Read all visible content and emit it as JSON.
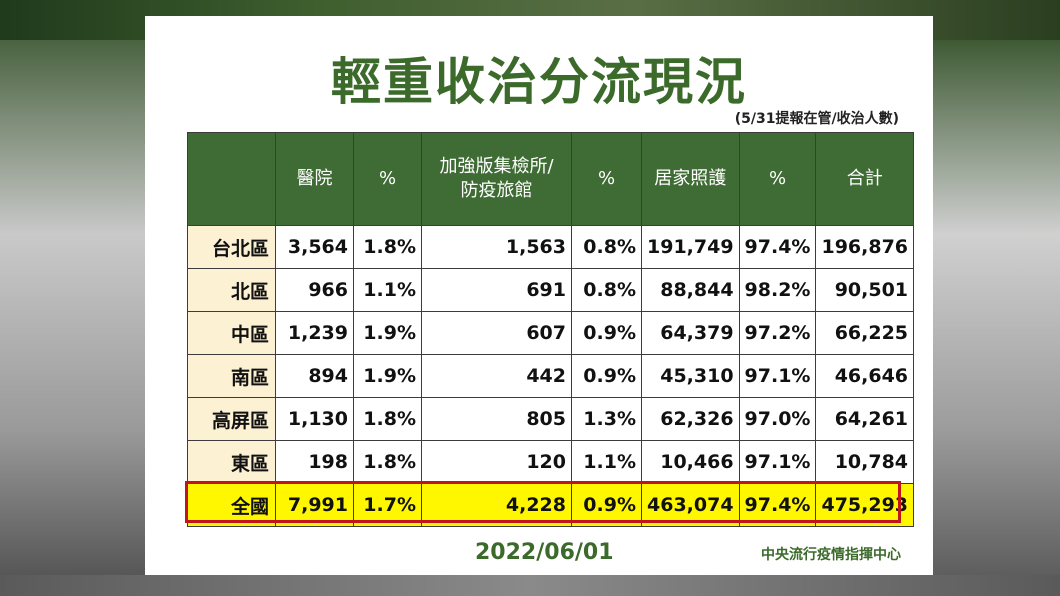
{
  "title": "輕重收治分流現況",
  "subtitle": "(5/31提報在管/收治人數)",
  "headers": [
    "",
    "醫院",
    "%",
    "加強版集檢所/\n防疫旅館",
    "%",
    "居家照護",
    "%",
    "合計"
  ],
  "rows": [
    [
      "台北區",
      "3,564",
      "1.8%",
      "1,563",
      "0.8%",
      "191,749",
      "97.4%",
      "196,876"
    ],
    [
      "北區",
      "966",
      "1.1%",
      "691",
      "0.8%",
      "88,844",
      "98.2%",
      "90,501"
    ],
    [
      "中區",
      "1,239",
      "1.9%",
      "607",
      "0.9%",
      "64,379",
      "97.2%",
      "66,225"
    ],
    [
      "南區",
      "894",
      "1.9%",
      "442",
      "0.9%",
      "45,310",
      "97.1%",
      "46,646"
    ],
    [
      "高屏區",
      "1,130",
      "1.8%",
      "805",
      "1.3%",
      "62,326",
      "97.0%",
      "64,261"
    ],
    [
      "東區",
      "198",
      "1.8%",
      "120",
      "1.1%",
      "10,466",
      "97.1%",
      "10,784"
    ]
  ],
  "total": [
    "全國",
    "7,991",
    "1.7%",
    "4,228",
    "0.9%",
    "463,074",
    "97.4%",
    "475,293"
  ],
  "date": "2022/06/01",
  "org": "中央流行疫情指揮中心",
  "colors": {
    "header_bg": "#3f6c34",
    "title": "#3b6a2b",
    "region_bg": "#fdf1d3",
    "total_bg": "#fff700",
    "total_border": "#c2141a"
  }
}
